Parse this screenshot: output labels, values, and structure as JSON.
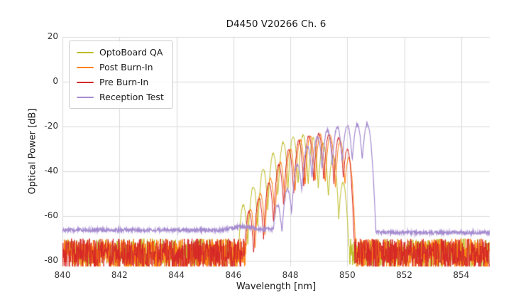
{
  "chart_data": {
    "type": "line",
    "title": "D4450 V20266 Ch. 6",
    "xlabel": "Wavelength [nm]",
    "ylabel": "Optical Power [dB]",
    "xlim": [
      840,
      855
    ],
    "ylim": [
      -82.5,
      20
    ],
    "xticks": [
      840,
      842,
      844,
      846,
      848,
      850,
      852,
      854
    ],
    "yticks": [
      20,
      0,
      -20,
      -40,
      -60,
      -80
    ],
    "grid": true,
    "legend_position": "upper left",
    "style": {
      "grid_color": "#dcdcdc",
      "text_color": "#262626",
      "legend_border": "#cccccc",
      "background": "#ffffff"
    },
    "series": [
      {
        "name": "OptoBoard QA",
        "color": "#bcbd22",
        "noise": "down",
        "floor": [
          [
            840,
            -70
          ],
          [
            855,
            -70
          ]
        ],
        "floor_depth": 13,
        "mode_sharpness": 700,
        "modes": [
          [
            846.35,
            -55
          ],
          [
            846.7,
            -47
          ],
          [
            847.05,
            -39
          ],
          [
            847.4,
            -32
          ],
          [
            847.75,
            -27
          ],
          [
            848.1,
            -24.5
          ],
          [
            848.45,
            -24
          ],
          [
            848.8,
            -25
          ],
          [
            849.15,
            -27.5
          ],
          [
            849.5,
            -33
          ],
          [
            849.85,
            -45
          ]
        ]
      },
      {
        "name": "Post Burn-In",
        "color": "#ff7f0e",
        "noise": "down",
        "floor": [
          [
            840,
            -70
          ],
          [
            855,
            -70
          ]
        ],
        "floor_depth": 14,
        "mode_sharpness": 700,
        "modes": [
          [
            846.6,
            -57
          ],
          [
            846.95,
            -50
          ],
          [
            847.3,
            -43
          ],
          [
            847.65,
            -36
          ],
          [
            848.0,
            -30
          ],
          [
            848.35,
            -26
          ],
          [
            848.7,
            -24
          ],
          [
            849.05,
            -23.5
          ],
          [
            849.4,
            -24
          ],
          [
            849.75,
            -26.5
          ],
          [
            850.05,
            -34
          ]
        ]
      },
      {
        "name": "Pre Burn-In",
        "color": "#d62728",
        "noise": "down",
        "floor": [
          [
            840,
            -70
          ],
          [
            855,
            -70
          ]
        ],
        "floor_depth": 14,
        "mode_sharpness": 700,
        "modes": [
          [
            846.55,
            -58
          ],
          [
            846.9,
            -52
          ],
          [
            847.25,
            -45
          ],
          [
            847.6,
            -37
          ],
          [
            847.95,
            -30.5
          ],
          [
            848.3,
            -26.5
          ],
          [
            848.65,
            -24.2
          ],
          [
            849.0,
            -23.3
          ],
          [
            849.35,
            -23.5
          ],
          [
            849.7,
            -25
          ],
          [
            850.0,
            -30
          ]
        ]
      },
      {
        "name": "Reception Test",
        "color": "#a58bd0",
        "noise": "sym",
        "floor": [
          [
            840,
            -66.2
          ],
          [
            845.6,
            -66.3
          ],
          [
            846.3,
            -64.6
          ],
          [
            846.9,
            -65.8
          ],
          [
            848.0,
            -66.2
          ],
          [
            850.9,
            -66.8
          ],
          [
            851.15,
            -67.3
          ],
          [
            855,
            -67.4
          ]
        ],
        "floor_depth": 1.6,
        "mode_sharpness": 520,
        "modes": [
          [
            847.55,
            -55
          ],
          [
            847.9,
            -48
          ],
          [
            848.25,
            -37
          ],
          [
            848.6,
            -29
          ],
          [
            848.95,
            -24.5
          ],
          [
            849.3,
            -21.5
          ],
          [
            849.65,
            -20.3
          ],
          [
            850.0,
            -19.6
          ],
          [
            850.35,
            -19.2
          ],
          [
            850.7,
            -19.0
          ]
        ]
      }
    ]
  }
}
